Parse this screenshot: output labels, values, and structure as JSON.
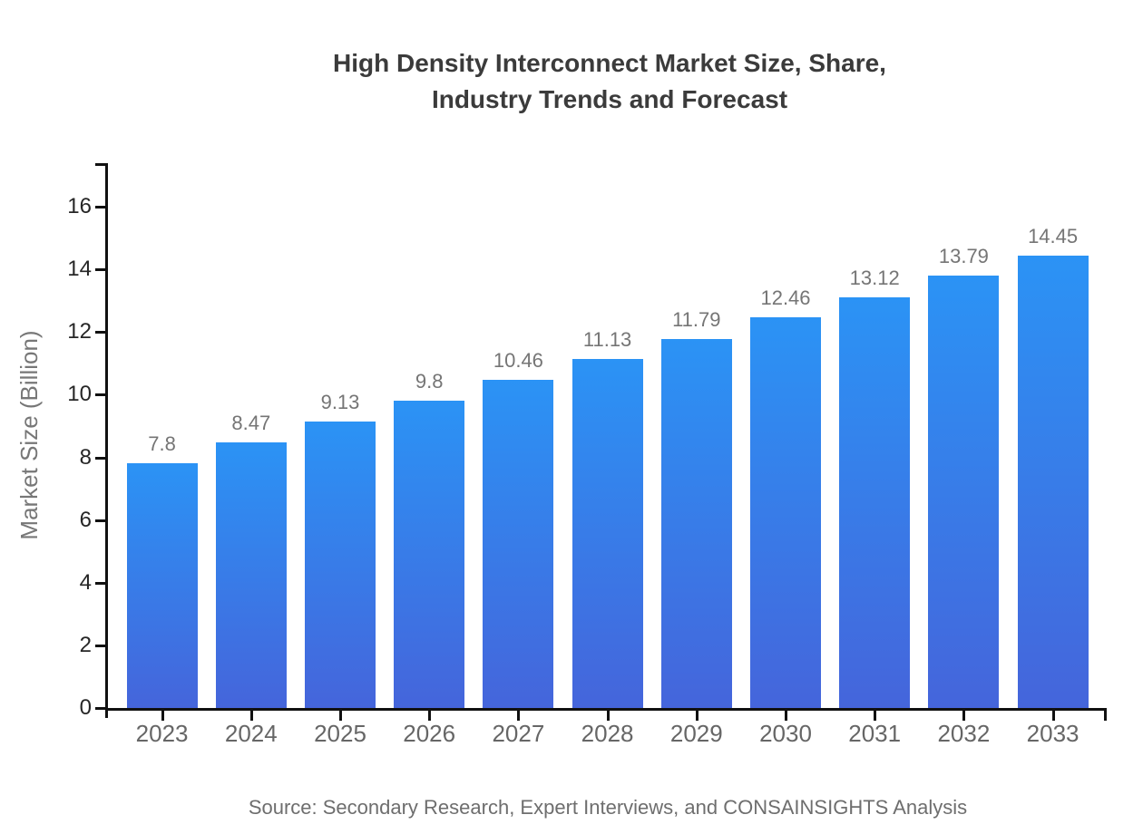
{
  "chart_data": {
    "type": "bar",
    "title": "High Density Interconnect Market Size, Share, Industry Trends and Forecast",
    "title_lines": [
      "High Density Interconnect Market Size, Share,",
      "Industry Trends and Forecast"
    ],
    "categories": [
      "2023",
      "2024",
      "2025",
      "2026",
      "2027",
      "2028",
      "2029",
      "2030",
      "2031",
      "2032",
      "2033"
    ],
    "values": [
      7.8,
      8.47,
      9.13,
      9.8,
      10.46,
      11.13,
      11.79,
      12.46,
      13.12,
      13.79,
      14.45
    ],
    "value_labels": [
      "7.8",
      "8.47",
      "9.13",
      "9.8",
      "10.46",
      "11.13",
      "11.79",
      "12.46",
      "13.12",
      "13.79",
      "14.45"
    ],
    "xlabel": "",
    "ylabel": "Market Size (Billion)",
    "yticks": [
      0,
      2,
      4,
      6,
      8,
      10,
      12,
      14,
      16
    ],
    "ylim": [
      0,
      17.4
    ],
    "grid": false,
    "legend": null,
    "source": "Source: Secondary Research, Expert Interviews, and CONSAINSIGHTS Analysis",
    "colors": {
      "bar_gradient_top": "#2b93f5",
      "bar_gradient_bottom": "#4565db",
      "axis": "#111111",
      "title": "#3b3b3b",
      "y_tick_label": "#262626",
      "category_label": "#666666",
      "value_label": "#757575",
      "axis_title": "#777777",
      "source": "#6e6e6e"
    }
  }
}
